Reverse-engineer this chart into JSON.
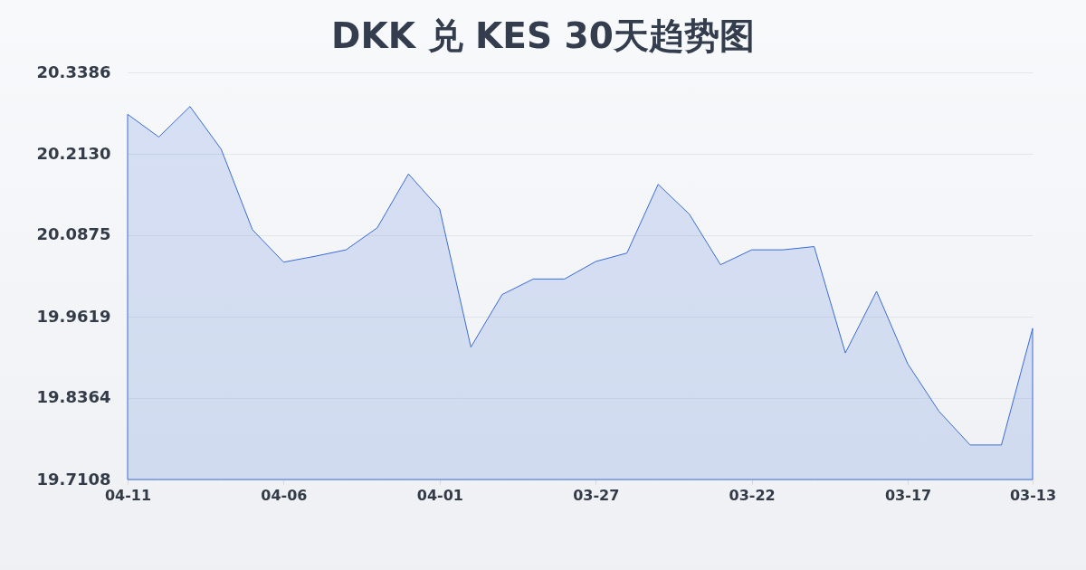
{
  "chart_data": {
    "type": "area",
    "title": "DKK 兑 KES 30天趋势图",
    "categories": [
      "04-11",
      null,
      null,
      null,
      null,
      "04-06",
      null,
      null,
      null,
      null,
      "04-01",
      null,
      null,
      null,
      null,
      "03-27",
      null,
      null,
      null,
      null,
      "03-22",
      null,
      null,
      null,
      null,
      "03-17",
      null,
      null,
      null,
      "03-13"
    ],
    "values": [
      20.274,
      20.239,
      20.286,
      20.22,
      20.096,
      20.046,
      20.055,
      20.065,
      20.099,
      20.182,
      20.128,
      19.915,
      19.996,
      20.02,
      20.02,
      20.047,
      20.06,
      20.166,
      20.12,
      20.042,
      20.065,
      20.065,
      20.07,
      19.906,
      20.001,
      19.889,
      19.816,
      19.764,
      19.764,
      19.944
    ],
    "color": "#3a6cd6",
    "ylim": [
      19.7108,
      20.3386
    ],
    "yticks": [
      19.7108,
      19.8364,
      19.9619,
      20.0875,
      {
        "value": 20.213,
        "label": "20.2130"
      },
      20.3386
    ],
    "grid": "y"
  }
}
